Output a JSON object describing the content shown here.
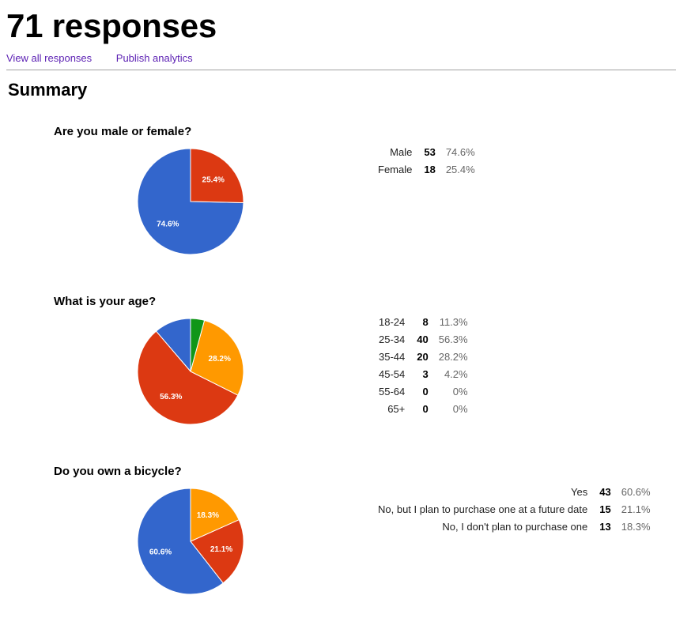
{
  "header": {
    "title": "71 responses",
    "links": {
      "view_all": "View all responses",
      "publish": "Publish analytics"
    },
    "summary": "Summary"
  },
  "colors": {
    "blue": "#3366cc",
    "red": "#dc3912",
    "orange": "#ff9900",
    "green": "#109618",
    "link": "#5b1fb3"
  },
  "questions": [
    {
      "title": "Are you male or female?",
      "rows": [
        {
          "label": "Male",
          "count": "53",
          "pct": "74.6%"
        },
        {
          "label": "Female",
          "count": "18",
          "pct": "25.4%"
        }
      ]
    },
    {
      "title": "What is your age?",
      "rows": [
        {
          "label": "18-24",
          "count": "8",
          "pct": "11.3%"
        },
        {
          "label": "25-34",
          "count": "40",
          "pct": "56.3%"
        },
        {
          "label": "35-44",
          "count": "20",
          "pct": "28.2%"
        },
        {
          "label": "45-54",
          "count": "3",
          "pct": "4.2%"
        },
        {
          "label": "55-64",
          "count": "0",
          "pct": "0%"
        },
        {
          "label": "65+",
          "count": "0",
          "pct": "0%"
        }
      ]
    },
    {
      "title": "Do you own a bicycle?",
      "rows": [
        {
          "label": "Yes",
          "count": "43",
          "pct": "60.6%"
        },
        {
          "label": "No, but I plan to purchase one at a future date",
          "count": "15",
          "pct": "21.1%"
        },
        {
          "label": "No, I don't plan to purchase one",
          "count": "13",
          "pct": "18.3%"
        }
      ]
    }
  ],
  "chart_data": [
    {
      "type": "pie",
      "title": "Are you male or female?",
      "categories": [
        "Male",
        "Female"
      ],
      "values": [
        53,
        18
      ],
      "percent_labels": [
        "74.6%",
        "25.4%"
      ],
      "colors": [
        "#3366cc",
        "#dc3912"
      ]
    },
    {
      "type": "pie",
      "title": "What is your age?",
      "categories": [
        "18-24",
        "25-34",
        "35-44",
        "45-54",
        "55-64",
        "65+"
      ],
      "values": [
        8,
        40,
        20,
        3,
        0,
        0
      ],
      "percent_labels": [
        "",
        "56.3%",
        "28.2%",
        "",
        "",
        ""
      ],
      "colors": [
        "#3366cc",
        "#dc3912",
        "#ff9900",
        "#109618",
        "#990099",
        "#0099c6"
      ]
    },
    {
      "type": "pie",
      "title": "Do you own a bicycle?",
      "categories": [
        "Yes",
        "No, but I plan to purchase one at a future date",
        "No, I don't plan to purchase one"
      ],
      "values": [
        43,
        15,
        13
      ],
      "percent_labels": [
        "60.6%",
        "21.1%",
        "18.3%"
      ],
      "colors": [
        "#3366cc",
        "#dc3912",
        "#ff9900"
      ]
    }
  ]
}
